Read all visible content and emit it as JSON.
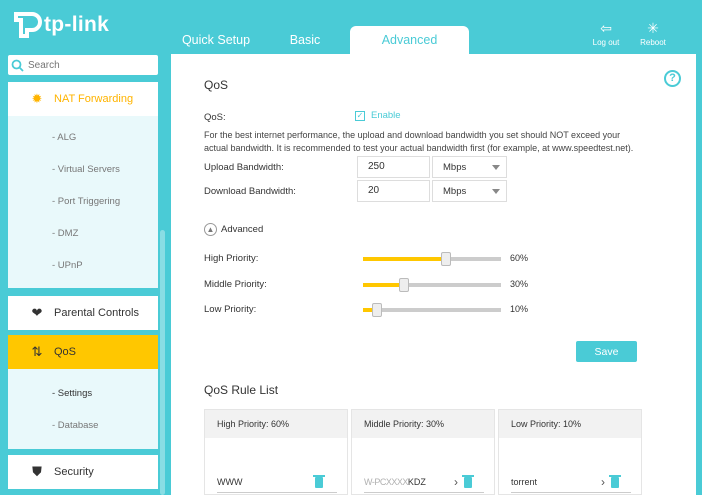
{
  "brand": {
    "name": "tp-link"
  },
  "tabs": [
    {
      "label": "Quick Setup"
    },
    {
      "label": "Basic"
    },
    {
      "label": "Advanced"
    }
  ],
  "header_buttons": {
    "logout": "Log out",
    "reboot": "Reboot"
  },
  "search": {
    "placeholder": "Search"
  },
  "sidebar": {
    "nat": "NAT Forwarding",
    "nat_sub": [
      "- ALG",
      "- Virtual Servers",
      "- Port Triggering",
      "- DMZ",
      "- UPnP"
    ],
    "parental": "Parental Controls",
    "qos": "QoS",
    "qos_sub": [
      "- Settings",
      "- Database"
    ],
    "security": "Security"
  },
  "qos": {
    "title": "QoS",
    "qos_label": "QoS:",
    "enable_label": "Enable",
    "enabled": true,
    "note": "For the best internet performance, the upload and download bandwidth you set should NOT exceed your actual bandwidth. It is recommended to test your actual bandwidth first (for example, at www.speedtest.net).",
    "upload_label": "Upload Bandwidth:",
    "upload_value": "250",
    "upload_unit": "Mbps",
    "download_label": "Download Bandwidth:",
    "download_value": "20",
    "download_unit": "Mbps",
    "advanced_label": "Advanced",
    "priorities": [
      {
        "label": "High Priority:",
        "percent": 60,
        "text": "60%"
      },
      {
        "label": "Middle Priority:",
        "percent": 30,
        "text": "30%"
      },
      {
        "label": "Low Priority:",
        "percent": 10,
        "text": "10%"
      }
    ],
    "save_label": "Save"
  },
  "rule_list": {
    "title": "QoS Rule List",
    "columns": [
      {
        "header": "High Priority: 60%",
        "item": "WWW"
      },
      {
        "header": "Middle Priority: 30%",
        "item_hidden": "W-PCXXXX",
        "item": "KDZ"
      },
      {
        "header": "Low Priority: 10%",
        "item": "torrent"
      }
    ]
  },
  "colors": {
    "accent": "#4acbd6",
    "highlight": "#ffc700",
    "nat": "#ffb400"
  }
}
